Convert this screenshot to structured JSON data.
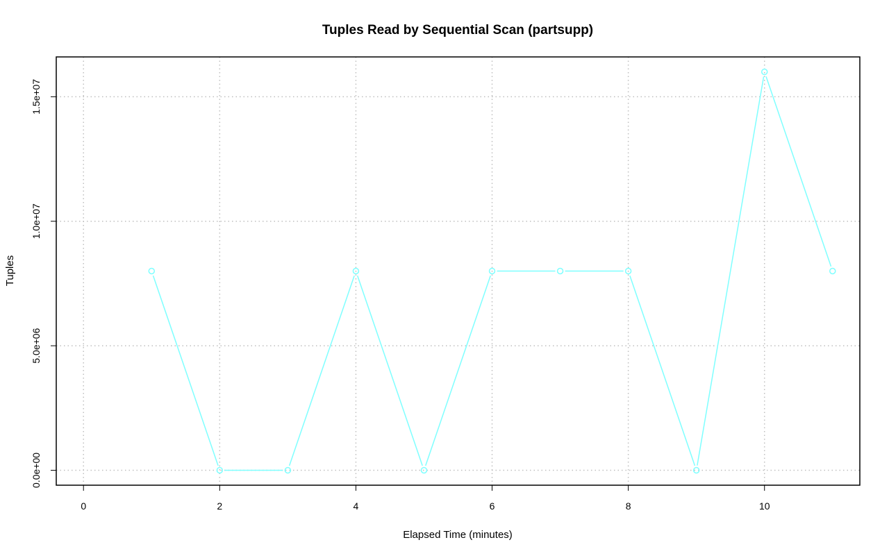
{
  "chart_data": {
    "type": "line",
    "title": "Tuples Read by Sequential Scan (partsupp)",
    "xlabel": "Elapsed Time (minutes)",
    "ylabel": "Tuples",
    "xlim": [
      -0.4,
      11.4
    ],
    "ylim": [
      -600000,
      16600000
    ],
    "x_ticks": [
      0,
      2,
      4,
      6,
      8,
      10
    ],
    "x_tick_labels": [
      "0",
      "2",
      "4",
      "6",
      "8",
      "10"
    ],
    "y_ticks": [
      0,
      5000000,
      10000000,
      15000000
    ],
    "y_tick_labels": [
      "0.0e+00",
      "5.0e+06",
      "1.0e+07",
      "1.5e+07"
    ],
    "grid": true,
    "series": [
      {
        "color": "#7fffff",
        "marker": "open-circle",
        "x": [
          1,
          2,
          3,
          4,
          5,
          6,
          7,
          8,
          9,
          10,
          11
        ],
        "y": [
          8000000,
          0,
          0,
          8000000,
          0,
          8000000,
          8000000,
          8000000,
          0,
          16000000,
          8000000
        ]
      }
    ]
  }
}
